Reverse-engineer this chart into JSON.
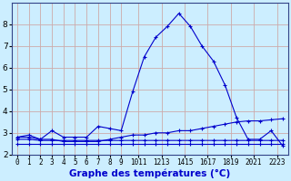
{
  "x": [
    0,
    1,
    2,
    3,
    4,
    5,
    6,
    7,
    8,
    9,
    10,
    11,
    12,
    13,
    14,
    15,
    16,
    17,
    18,
    19,
    20,
    21,
    22,
    23
  ],
  "temp_curve": [
    2.8,
    2.9,
    2.7,
    3.1,
    2.8,
    2.8,
    2.8,
    3.3,
    3.2,
    3.1,
    4.9,
    6.5,
    7.4,
    7.9,
    8.5,
    7.9,
    7.0,
    6.3,
    5.2,
    3.7,
    2.7,
    2.7,
    3.1,
    2.4
  ],
  "flat_line1": [
    2.7,
    2.7,
    2.65,
    2.65,
    2.65,
    2.65,
    2.65,
    2.65,
    2.65,
    2.65,
    2.65,
    2.65,
    2.65,
    2.65,
    2.65,
    2.65,
    2.65,
    2.65,
    2.65,
    2.65,
    2.65,
    2.65,
    2.65,
    2.65
  ],
  "flat_line2": [
    2.5,
    2.5,
    2.5,
    2.5,
    2.5,
    2.5,
    2.5,
    2.5,
    2.5,
    2.5,
    2.5,
    2.5,
    2.5,
    2.5,
    2.5,
    2.5,
    2.5,
    2.5,
    2.5,
    2.5,
    2.5,
    2.5,
    2.5,
    2.5
  ],
  "rising_line": [
    2.8,
    2.8,
    2.7,
    2.7,
    2.6,
    2.6,
    2.6,
    2.6,
    2.7,
    2.8,
    2.9,
    2.9,
    3.0,
    3.0,
    3.1,
    3.1,
    3.2,
    3.3,
    3.4,
    3.5,
    3.55,
    3.55,
    3.6,
    3.65
  ],
  "xlabel": "Graphe des températures (°C)",
  "ylim": [
    2.0,
    9.0
  ],
  "xlim": [
    -0.5,
    23.5
  ],
  "yticks": [
    2,
    3,
    4,
    5,
    6,
    7,
    8
  ],
  "xtick_labels": [
    "0",
    "1",
    "2",
    "3",
    "4",
    "5",
    "6",
    "7",
    "8",
    "9",
    "1011",
    "1213",
    "1415",
    "1617",
    "1819",
    "2021",
    "2223"
  ],
  "xtick_positions": [
    0,
    1,
    2,
    3,
    4,
    5,
    6,
    7,
    8,
    9,
    10.5,
    12.5,
    14.5,
    16.5,
    18.5,
    20.5,
    22.5
  ],
  "line_color": "#0000cc",
  "bg_color": "#cceeff",
  "grid_color": "#ccaaaa",
  "xlabel_color": "#0000cc",
  "xlabel_fontsize": 7.5,
  "tick_fontsize": 5.5,
  "ytick_fontsize": 6.5
}
